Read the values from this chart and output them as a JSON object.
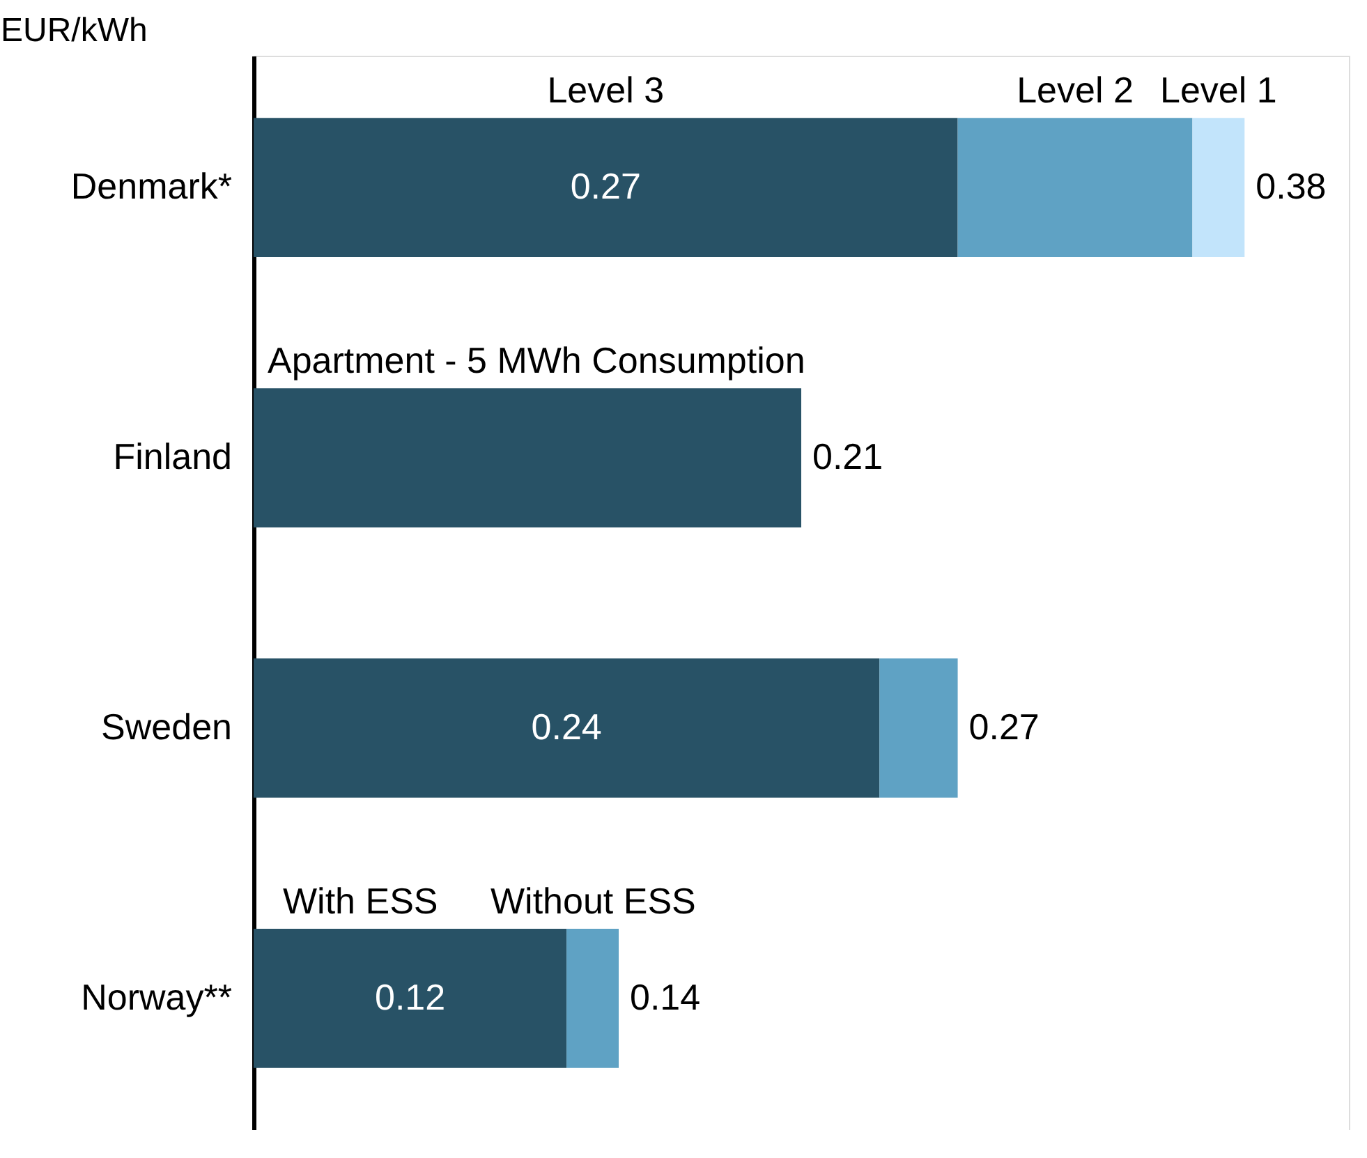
{
  "chart_data": {
    "type": "bar",
    "orientation": "horizontal",
    "stacked": true,
    "xlabel": "EUR/kWh",
    "categories": [
      "Denmark*",
      "Finland",
      "Sweden",
      "Norway**"
    ],
    "series": [
      {
        "color": "#285266",
        "values": [
          0.27,
          0.21,
          0.24,
          0.12
        ],
        "value_labels": [
          "0.27",
          null,
          "0.24",
          "0.12"
        ]
      },
      {
        "color": "#5fa2c4",
        "values": [
          0.09,
          null,
          0.03,
          0.02
        ]
      },
      {
        "color": "#c2e4fb",
        "values": [
          0.02,
          null,
          null,
          null
        ]
      }
    ],
    "totals": [
      "0.38",
      "0.21",
      "0.27",
      "0.14"
    ],
    "xlim": [
      0,
      0.42
    ],
    "tick_labels": "y",
    "grid": false,
    "annotations": [
      "Level 3",
      "Level 2",
      "Level 1",
      "Apartment - 5 MWh Consumption",
      "With ESS",
      "Without ESS"
    ]
  }
}
